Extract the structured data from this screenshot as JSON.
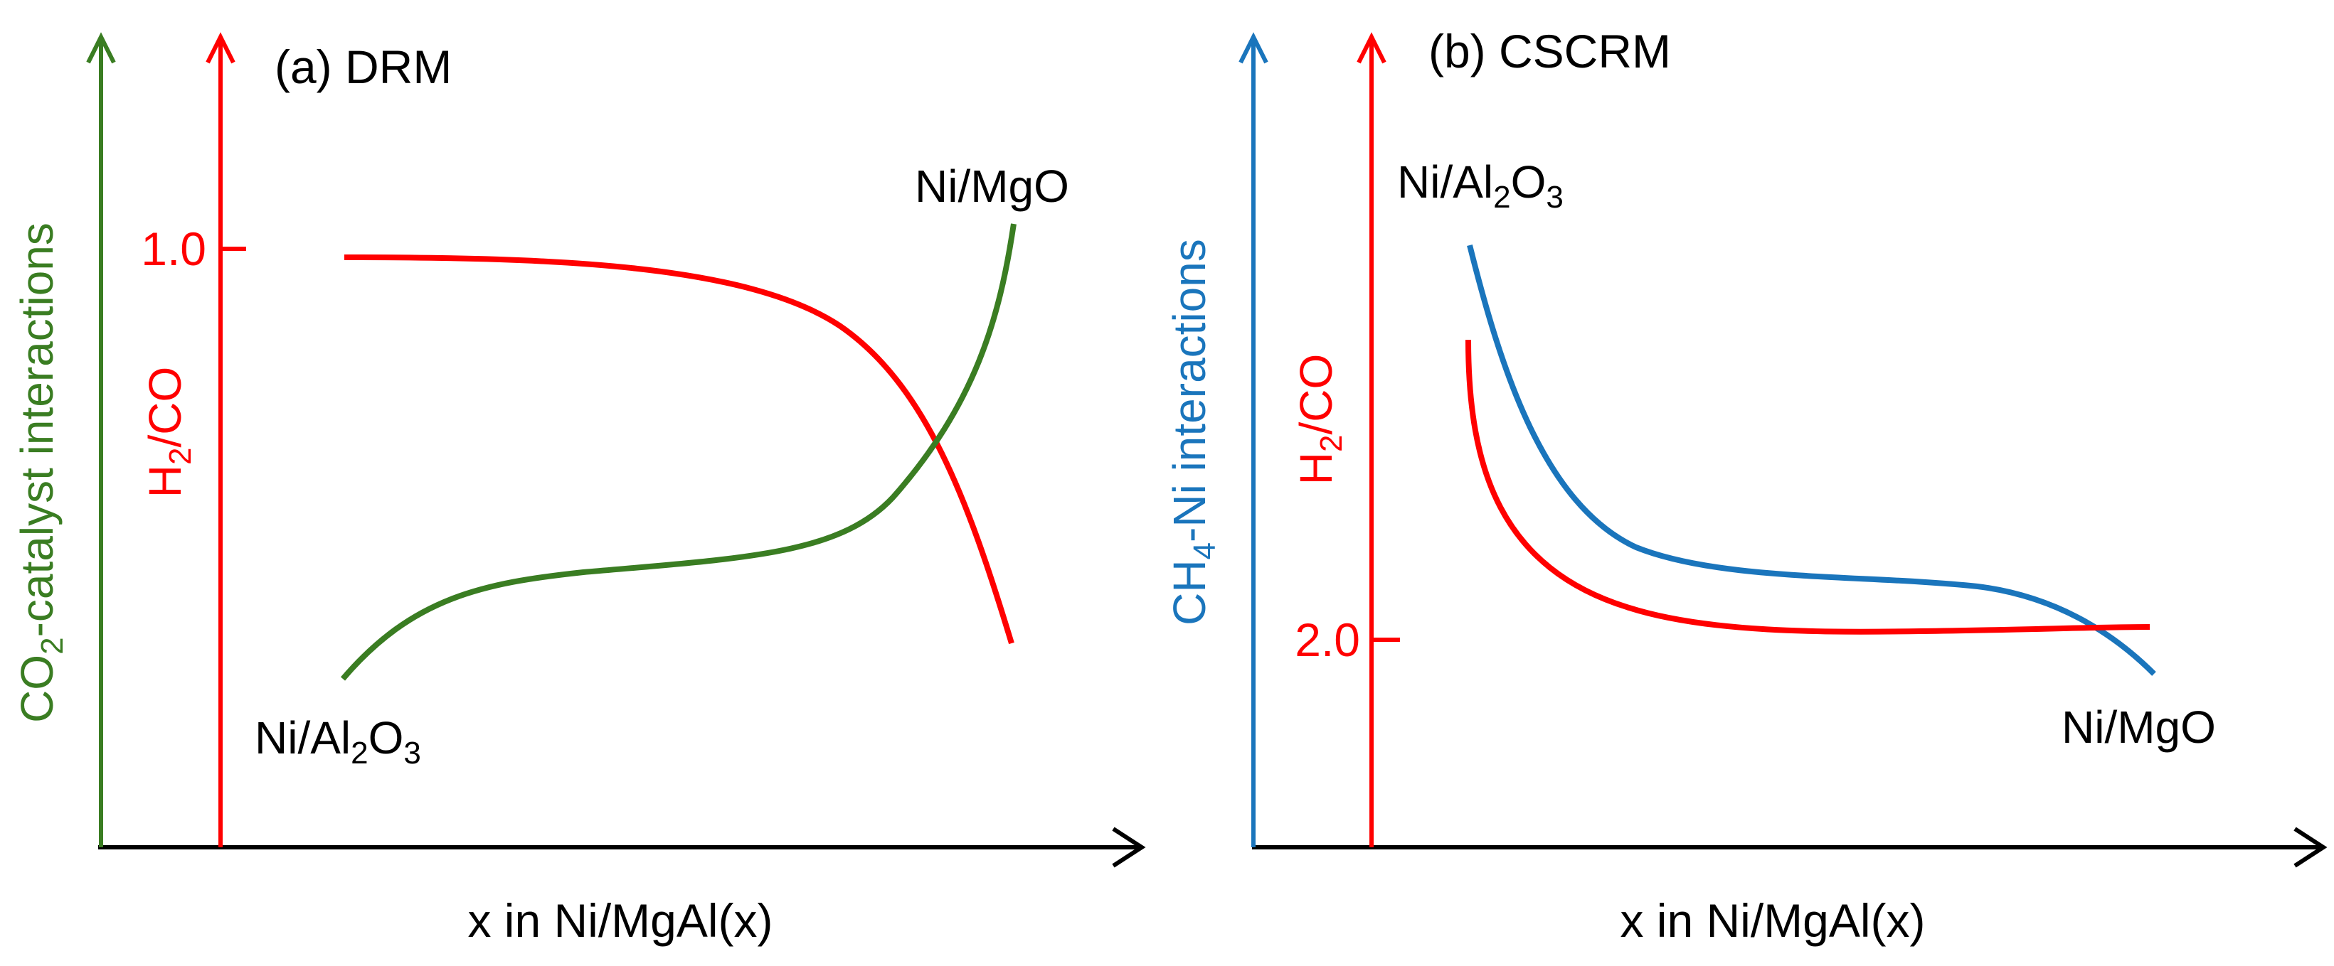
{
  "chart_data": [
    {
      "type": "line",
      "title": "(a) DRM",
      "xlabel": "x in Ni/MgAl(x)",
      "ylabel_left": {
        "main": "CO",
        "sub": "2",
        "rest": "-catalyst interactions"
      },
      "ylabel_right": {
        "main": "H",
        "sub": "2",
        "rest": "/CO"
      },
      "y_tick": "1.0",
      "annotations": [
        {
          "main": "Ni/Al",
          "sub1": "2",
          "mid": "O",
          "sub2": "3"
        },
        {
          "text": "Ni/MgO"
        }
      ],
      "series": [
        {
          "name": "H2/CO",
          "color": "#ff0000"
        },
        {
          "name": "CO2-catalyst interactions",
          "color": "#3a7d22"
        }
      ]
    },
    {
      "type": "line",
      "title": "(b) CSCRM",
      "xlabel": "x in Ni/MgAl(x)",
      "ylabel_left": {
        "main": "CH",
        "sub": "4",
        "rest": "-Ni interactions"
      },
      "ylabel_right": {
        "main": "H",
        "sub": "2",
        "rest": "/CO"
      },
      "y_tick": "2.0",
      "annotations": [
        {
          "main": "Ni/Al",
          "sub1": "2",
          "mid": "O",
          "sub2": "3"
        },
        {
          "text": "Ni/MgO"
        }
      ],
      "series": [
        {
          "name": "CH4-Ni interactions",
          "color": "#1a75bc"
        },
        {
          "name": "H2/CO",
          "color": "#ff0000"
        }
      ]
    }
  ],
  "colors": {
    "axis": "#000000",
    "red": "#ff0000",
    "green": "#3a7d22",
    "blue": "#1a75bc"
  }
}
